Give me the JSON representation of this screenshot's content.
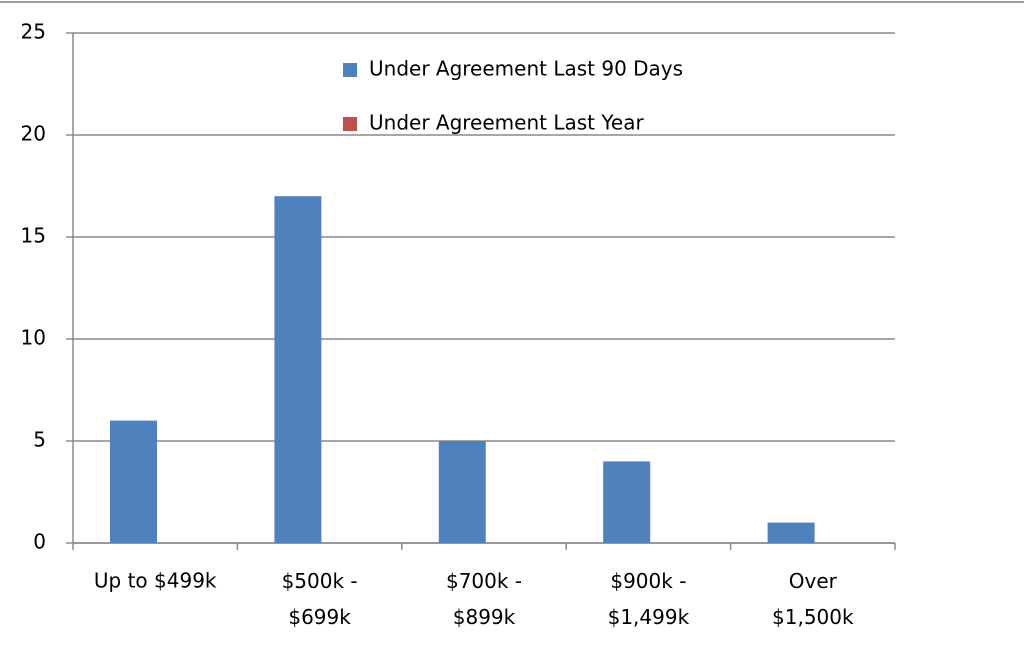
{
  "chart_data": {
    "type": "bar",
    "categories": [
      "Up to $499k",
      "$500k -\n$699k",
      "$700k -\n$899k",
      "$900k -\n$1,499k",
      "Over\n$1,500k"
    ],
    "series": [
      {
        "name": "Under Agreement Last 90 Days",
        "color": "#4f81bd",
        "values": [
          6,
          17,
          5,
          4,
          1
        ]
      },
      {
        "name": "Under Agreement Last Year",
        "color": "#c0504d",
        "values": [
          0,
          0,
          0,
          0,
          0
        ]
      }
    ],
    "ylim": [
      0,
      25
    ],
    "yticks": [
      0,
      5,
      10,
      15,
      20,
      25
    ],
    "grid": true,
    "legend": "top"
  }
}
